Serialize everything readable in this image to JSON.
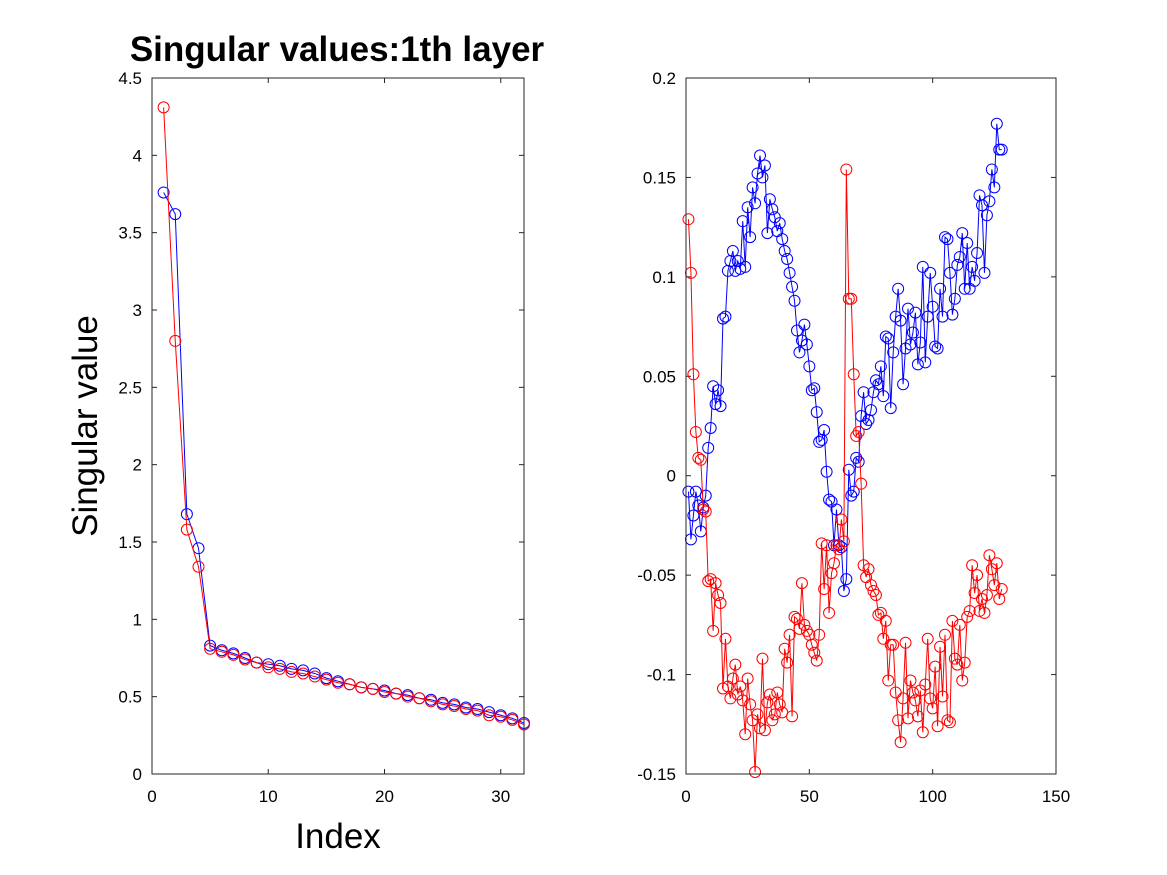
{
  "chart_data": [
    {
      "type": "line",
      "title": "Singular values:1th layer",
      "xlabel": "Index",
      "ylabel": "Singular value",
      "xlim": [
        0,
        32
      ],
      "ylim": [
        0,
        4.5
      ],
      "xticks": [
        0,
        10,
        20,
        30
      ],
      "yticks": [
        0,
        0.5,
        1,
        1.5,
        2,
        2.5,
        3,
        3.5,
        4,
        4.5
      ],
      "grid": false,
      "markers": "circle",
      "series": [
        {
          "color": "#0000ff",
          "x": [
            1,
            2,
            3,
            4,
            5,
            6,
            7,
            8,
            9,
            10,
            11,
            12,
            13,
            14,
            15,
            16,
            17,
            18,
            19,
            20,
            21,
            22,
            23,
            24,
            25,
            26,
            27,
            28,
            29,
            30,
            31,
            32
          ],
          "values": [
            3.76,
            3.62,
            1.68,
            1.46,
            0.83,
            0.8,
            0.78,
            0.75,
            0.72,
            0.71,
            0.7,
            0.68,
            0.67,
            0.65,
            0.62,
            0.6,
            0.58,
            0.56,
            0.55,
            0.54,
            0.52,
            0.51,
            0.49,
            0.48,
            0.46,
            0.45,
            0.43,
            0.42,
            0.4,
            0.38,
            0.36,
            0.33
          ]
        },
        {
          "color": "#ff0000",
          "x": [
            1,
            2,
            3,
            4,
            5,
            6,
            7,
            8,
            9,
            10,
            11,
            12,
            13,
            14,
            15,
            16,
            17,
            18,
            19,
            20,
            21,
            22,
            23,
            24,
            25,
            26,
            27,
            28,
            29,
            30,
            31,
            32
          ],
          "values": [
            4.31,
            2.8,
            1.58,
            1.34,
            0.81,
            0.79,
            0.77,
            0.74,
            0.72,
            0.69,
            0.68,
            0.66,
            0.65,
            0.63,
            0.61,
            0.59,
            0.58,
            0.56,
            0.55,
            0.53,
            0.52,
            0.5,
            0.49,
            0.47,
            0.45,
            0.44,
            0.42,
            0.41,
            0.38,
            0.37,
            0.35,
            0.32
          ]
        }
      ]
    },
    {
      "type": "line",
      "title": "",
      "xlabel": "",
      "ylabel": "",
      "xlim": [
        0,
        150
      ],
      "ylim": [
        -0.15,
        0.2
      ],
      "xticks": [
        0,
        50,
        100,
        150
      ],
      "yticks": [
        -0.15,
        -0.1,
        -0.05,
        0,
        0.05,
        0.1,
        0.15,
        0.2
      ],
      "ytick_labels": [
        "-0.15",
        "-0.1",
        "-0.05",
        "0",
        "0.05",
        "0.1",
        "0.15",
        "0.2"
      ],
      "grid": false,
      "markers": "circle",
      "series": [
        {
          "color": "#0000ff",
          "x": [
            1,
            2,
            3,
            4,
            5,
            6,
            7,
            8,
            9,
            10,
            11,
            12,
            13,
            14,
            15,
            16,
            17,
            18,
            19,
            20,
            21,
            22,
            23,
            24,
            25,
            26,
            27,
            28,
            29,
            30,
            31,
            32,
            33,
            34,
            35,
            36,
            37,
            38,
            39,
            40,
            41,
            42,
            43,
            44,
            45,
            46,
            47,
            48,
            49,
            50,
            51,
            52,
            53,
            54,
            55,
            56,
            57,
            58,
            59,
            60,
            61,
            62,
            63,
            64,
            65,
            66,
            67,
            68,
            69,
            70,
            71,
            72,
            73,
            74,
            75,
            76,
            77,
            78,
            79,
            80,
            81,
            82,
            83,
            84,
            85,
            86,
            87,
            88,
            89,
            90,
            91,
            92,
            93,
            94,
            95,
            96,
            97,
            98,
            99,
            100,
            101,
            102,
            103,
            104,
            105,
            106,
            107,
            108,
            109,
            110,
            111,
            112,
            113,
            114,
            115,
            116,
            117,
            118,
            119,
            120,
            121,
            122,
            123,
            124,
            125,
            126,
            127,
            128
          ],
          "values": [
            -0.008,
            -0.032,
            -0.02,
            -0.008,
            -0.015,
            -0.028,
            -0.016,
            -0.01,
            0.014,
            0.024,
            0.045,
            0.036,
            0.043,
            0.035,
            0.079,
            0.08,
            0.103,
            0.108,
            0.113,
            0.103,
            0.108,
            0.104,
            0.128,
            0.105,
            0.135,
            0.12,
            0.145,
            0.137,
            0.152,
            0.161,
            0.15,
            0.156,
            0.122,
            0.139,
            0.134,
            0.13,
            0.123,
            0.127,
            0.119,
            0.113,
            0.109,
            0.102,
            0.095,
            0.088,
            0.073,
            0.062,
            0.068,
            0.076,
            0.066,
            0.055,
            0.043,
            0.044,
            0.032,
            0.017,
            0.018,
            0.023,
            0.002,
            -0.012,
            -0.013,
            -0.035,
            -0.017,
            -0.035,
            -0.036,
            -0.058,
            -0.052,
            0.003,
            -0.01,
            -0.008,
            0.009,
            0.007,
            0.03,
            0.042,
            0.026,
            0.028,
            0.033,
            0.042,
            0.048,
            0.046,
            0.055,
            0.04,
            0.07,
            0.069,
            0.034,
            0.062,
            0.08,
            0.094,
            0.078,
            0.046,
            0.064,
            0.084,
            0.066,
            0.072,
            0.082,
            0.056,
            0.067,
            0.105,
            0.057,
            0.08,
            0.102,
            0.085,
            0.065,
            0.064,
            0.094,
            0.08,
            0.12,
            0.119,
            0.102,
            0.081,
            0.089,
            0.106,
            0.11,
            0.122,
            0.094,
            0.117,
            0.094,
            0.105,
            0.098,
            0.112,
            0.141,
            0.136,
            0.102,
            0.131,
            0.138,
            0.154,
            0.145,
            0.177,
            0.164,
            0.164
          ]
        },
        {
          "color": "#ff0000",
          "x": [
            1,
            2,
            3,
            4,
            5,
            6,
            7,
            8,
            9,
            10,
            11,
            12,
            13,
            14,
            15,
            16,
            17,
            18,
            19,
            20,
            21,
            22,
            23,
            24,
            25,
            26,
            27,
            28,
            29,
            30,
            31,
            32,
            33,
            34,
            35,
            36,
            37,
            38,
            39,
            40,
            41,
            42,
            43,
            44,
            45,
            46,
            47,
            48,
            49,
            50,
            51,
            52,
            53,
            54,
            55,
            56,
            57,
            58,
            59,
            60,
            61,
            62,
            63,
            64,
            65,
            66,
            67,
            68,
            69,
            70,
            71,
            72,
            73,
            74,
            75,
            76,
            77,
            78,
            79,
            80,
            81,
            82,
            83,
            84,
            85,
            86,
            87,
            88,
            89,
            90,
            91,
            92,
            93,
            94,
            95,
            96,
            97,
            98,
            99,
            100,
            101,
            102,
            103,
            104,
            105,
            106,
            107,
            108,
            109,
            110,
            111,
            112,
            113,
            114,
            115,
            116,
            117,
            118,
            119,
            120,
            121,
            122,
            123,
            124,
            125,
            126,
            127,
            128
          ],
          "values": [
            0.129,
            0.102,
            0.051,
            0.022,
            0.009,
            0.008,
            -0.017,
            -0.018,
            -0.053,
            -0.052,
            -0.078,
            -0.054,
            -0.06,
            -0.064,
            -0.107,
            -0.082,
            -0.106,
            -0.112,
            -0.102,
            -0.095,
            -0.11,
            -0.106,
            -0.113,
            -0.13,
            -0.102,
            -0.115,
            -0.123,
            -0.149,
            -0.12,
            -0.127,
            -0.092,
            -0.128,
            -0.114,
            -0.11,
            -0.123,
            -0.12,
            -0.109,
            -0.115,
            -0.119,
            -0.087,
            -0.094,
            -0.08,
            -0.121,
            -0.071,
            -0.072,
            -0.077,
            -0.054,
            -0.075,
            -0.078,
            -0.08,
            -0.085,
            -0.089,
            -0.093,
            -0.08,
            -0.034,
            -0.057,
            -0.035,
            -0.069,
            -0.049,
            -0.044,
            -0.035,
            -0.037,
            -0.022,
            -0.033,
            0.154,
            0.089,
            0.089,
            0.051,
            0.02,
            0.022,
            -0.004,
            -0.045,
            -0.051,
            -0.047,
            -0.055,
            -0.058,
            -0.06,
            -0.07,
            -0.069,
            -0.082,
            -0.073,
            -0.103,
            -0.085,
            -0.085,
            -0.109,
            -0.123,
            -0.134,
            -0.112,
            -0.084,
            -0.122,
            -0.103,
            -0.109,
            -0.113,
            -0.121,
            -0.108,
            -0.129,
            -0.105,
            -0.082,
            -0.112,
            -0.117,
            -0.096,
            -0.126,
            -0.086,
            -0.111,
            -0.08,
            -0.123,
            -0.124,
            -0.073,
            -0.092,
            -0.095,
            -0.075,
            -0.103,
            -0.094,
            -0.071,
            -0.068,
            -0.045,
            -0.059,
            -0.05,
            -0.068,
            -0.062,
            -0.069,
            -0.06,
            -0.04,
            -0.047,
            -0.055,
            -0.044,
            -0.062,
            -0.057
          ]
        }
      ]
    }
  ]
}
